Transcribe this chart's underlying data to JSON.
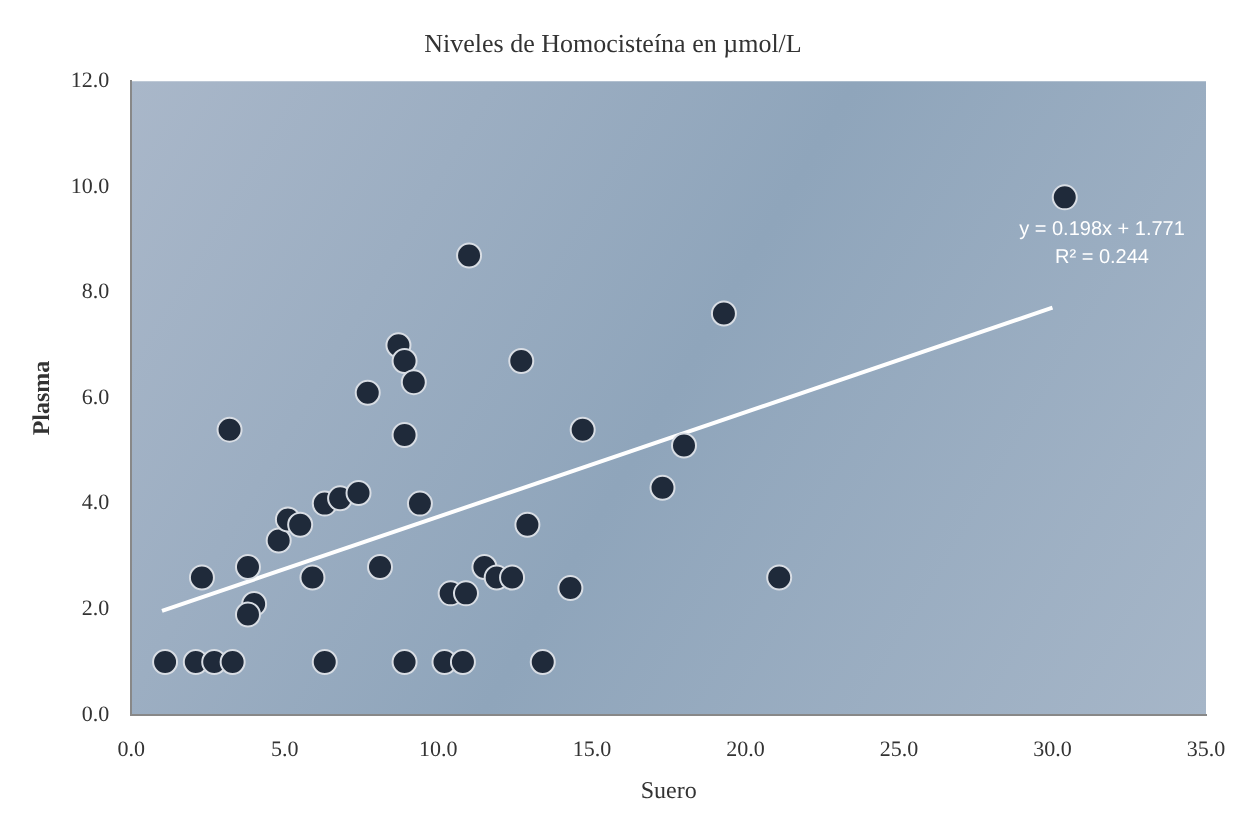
{
  "chart_data": {
    "type": "scatter",
    "title": "Niveles de Homocisteína en µmol/L",
    "xlabel": "Suero",
    "ylabel": "Plasma",
    "xlim": [
      0,
      35
    ],
    "xticks": [
      {
        "value": 0,
        "label": "0.0"
      },
      {
        "value": 5,
        "label": "5.0"
      },
      {
        "value": 10,
        "label": "10.0"
      },
      {
        "value": 15,
        "label": "15.0"
      },
      {
        "value": 20,
        "label": "20.0"
      },
      {
        "value": 25,
        "label": "25.0"
      },
      {
        "value": 30,
        "label": "30.0"
      },
      {
        "value": 35,
        "label": "35.0"
      }
    ],
    "ylim": [
      0,
      12
    ],
    "yticks": [
      {
        "value": 0,
        "label": "0.0"
      },
      {
        "value": 2,
        "label": "2.0"
      },
      {
        "value": 4,
        "label": "4.0"
      },
      {
        "value": 6,
        "label": "6.0"
      },
      {
        "value": 8,
        "label": "8.0"
      },
      {
        "value": 10,
        "label": "10.0"
      },
      {
        "value": 12,
        "label": "12.0"
      }
    ],
    "grid": false,
    "legend": false,
    "series": [
      {
        "marker": "circle",
        "color": "#1f2a3a",
        "x": [
          1.1,
          2.1,
          2.7,
          3.3,
          6.3,
          8.9,
          10.2,
          10.8,
          13.4,
          2.3,
          3.8,
          4.0,
          3.8,
          4.8,
          5.1,
          5.5,
          6.3,
          6.8,
          7.4,
          5.9,
          8.1,
          9.4,
          3.2,
          7.7,
          8.7,
          8.9,
          9.2,
          8.9,
          11.0,
          12.7,
          14.7,
          10.4,
          10.9,
          11.5,
          11.9,
          12.4,
          12.9,
          14.3,
          17.3,
          18.0,
          19.3,
          21.1,
          30.4
        ],
        "values": [
          1.0,
          1.0,
          1.0,
          1.0,
          1.0,
          1.0,
          1.0,
          1.0,
          1.0,
          2.6,
          2.8,
          2.1,
          1.9,
          3.3,
          3.7,
          3.6,
          4.0,
          4.1,
          4.2,
          2.6,
          2.8,
          4.0,
          5.4,
          6.1,
          7.0,
          6.7,
          6.3,
          5.3,
          8.7,
          6.7,
          5.4,
          2.3,
          2.3,
          2.8,
          2.6,
          2.6,
          3.6,
          2.4,
          4.3,
          5.1,
          7.6,
          2.6,
          9.8
        ]
      },
      {
        "type": "line",
        "color": "#ffffff",
        "x": [
          1.0,
          30.0
        ],
        "values": [
          1.97,
          7.71
        ]
      }
    ],
    "annotations": [
      "y = 0.198x + 1.771",
      "R² = 0.244"
    ]
  }
}
